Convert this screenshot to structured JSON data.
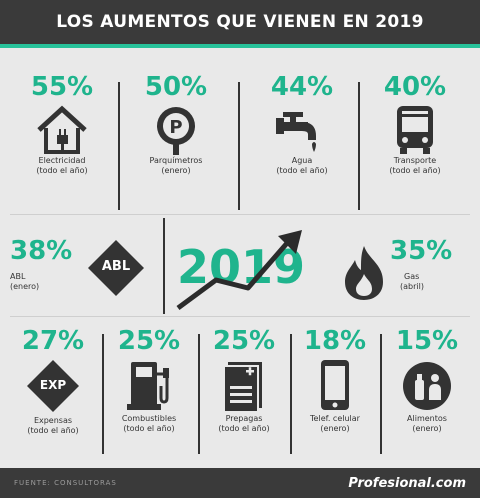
{
  "header": {
    "title": "LOS AUMENTOS QUE VIENEN EN 2019"
  },
  "row1": [
    {
      "pct": "55%",
      "label1": "Electricidad",
      "label2": "(todo el año)",
      "icon": "house-plug-icon"
    },
    {
      "pct": "50%",
      "label1": "Parquímetros",
      "label2": "(enero)",
      "icon": "parking-meter-icon"
    },
    {
      "pct": "44%",
      "label1": "Agua",
      "label2": "(todo el año)",
      "icon": "water-tap-icon"
    },
    {
      "pct": "40%",
      "label1": "Transporte",
      "label2": "(todo el año)",
      "icon": "bus-icon"
    }
  ],
  "row2": {
    "abl": {
      "pct": "38%",
      "label1": "ABL",
      "label2": "(enero)",
      "badge": "ABL",
      "icon": "abl-diamond-icon"
    },
    "center": {
      "year": "2019",
      "icon": "rising-arrow-icon"
    },
    "gas": {
      "pct": "35%",
      "label1": "Gas",
      "label2": "(abril)",
      "icon": "flame-icon"
    }
  },
  "row3": [
    {
      "pct": "27%",
      "label1": "Expensas",
      "label2": "(todo el año)",
      "badge": "EXP",
      "icon": "exp-diamond-icon"
    },
    {
      "pct": "25%",
      "label1": "Combustibles",
      "label2": "(todo el año)",
      "icon": "fuel-pump-icon"
    },
    {
      "pct": "25%",
      "label1": "Prepagas",
      "label2": "(todo el año)",
      "icon": "document-plus-icon"
    },
    {
      "pct": "18%",
      "label1": "Telef. celular",
      "label2": "(enero)",
      "icon": "mobile-phone-icon"
    },
    {
      "pct": "15%",
      "label1": "Alimentos",
      "label2": "(enero)",
      "icon": "groceries-icon"
    }
  ],
  "footer": {
    "source": "FUENTE: CONSULTORAS",
    "brand": "Profesional.com"
  },
  "colors": {
    "accent": "#1fb48d",
    "dark": "#3a3a3a",
    "background": "#e9e9e9"
  }
}
